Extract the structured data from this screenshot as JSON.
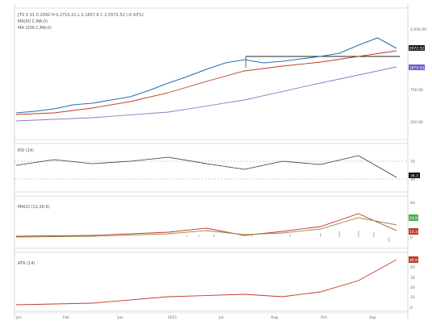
{
  "chart_data": [
    {
      "type": "line",
      "panel": "price",
      "header": {
        "symbol_line": "[TS X 01 0.2092 H 0.2715.21 L 2.1657.6 C 2.0572.52 (-0.93%)",
        "ma50": "MA(50 C,MA,0)",
        "ma200": "MA (200 C,MA,0)"
      },
      "y_ticks": [
        "1,050.00",
        "750.00",
        "250.00"
      ],
      "last_value_tag": "2072.52",
      "ma_value_tag": "1874.93",
      "series": [
        {
          "values": [
            {
              "x": 0,
              "y": 140
            },
            {
              "x": 0.05,
              "y": 138
            },
            {
              "x": 0.1,
              "y": 135
            },
            {
              "x": 0.15,
              "y": 130
            },
            {
              "x": 0.2,
              "y": 128
            },
            {
              "x": 0.25,
              "y": 124
            },
            {
              "x": 0.3,
              "y": 120
            },
            {
              "x": 0.35,
              "y": 112
            },
            {
              "x": 0.4,
              "y": 103
            },
            {
              "x": 0.45,
              "y": 95
            },
            {
              "x": 0.5,
              "y": 86
            },
            {
              "x": 0.55,
              "y": 78
            },
            {
              "x": 0.6,
              "y": 74
            },
            {
              "x": 0.65,
              "y": 78
            },
            {
              "x": 0.7,
              "y": 76
            },
            {
              "x": 0.75,
              "y": 73
            },
            {
              "x": 0.8,
              "y": 70
            },
            {
              "x": 0.85,
              "y": 66
            },
            {
              "x": 0.9,
              "y": 56
            },
            {
              "x": 0.95,
              "y": 47
            },
            {
              "x": 1,
              "y": 60
            }
          ]
        },
        {
          "values": [
            {
              "x": 0,
              "y": 142
            },
            {
              "x": 0.1,
              "y": 140
            },
            {
              "x": 0.2,
              "y": 134
            },
            {
              "x": 0.3,
              "y": 126
            },
            {
              "x": 0.4,
              "y": 115
            },
            {
              "x": 0.5,
              "y": 101
            },
            {
              "x": 0.6,
              "y": 88
            },
            {
              "x": 0.7,
              "y": 82
            },
            {
              "x": 0.8,
              "y": 77
            },
            {
              "x": 0.9,
              "y": 70
            },
            {
              "x": 1,
              "y": 63
            }
          ]
        },
        {
          "values": [
            {
              "x": 0,
              "y": 150
            },
            {
              "x": 0.2,
              "y": 146
            },
            {
              "x": 0.4,
              "y": 139
            },
            {
              "x": 0.6,
              "y": 124
            },
            {
              "x": 0.8,
              "y": 103
            },
            {
              "x": 1,
              "y": 83
            }
          ]
        }
      ]
    },
    {
      "type": "line",
      "panel": "rsi",
      "header": "RSI (14)",
      "y_ticks": [
        "70",
        "30"
      ],
      "last_value_tag": "36.3",
      "series": [
        {
          "values": [
            {
              "x": 0,
              "y": 205
            },
            {
              "x": 0.1,
              "y": 198
            },
            {
              "x": 0.2,
              "y": 203
            },
            {
              "x": 0.3,
              "y": 200
            },
            {
              "x": 0.4,
              "y": 195
            },
            {
              "x": 0.5,
              "y": 203
            },
            {
              "x": 0.6,
              "y": 210
            },
            {
              "x": 0.7,
              "y": 200
            },
            {
              "x": 0.8,
              "y": 204
            },
            {
              "x": 0.9,
              "y": 193
            },
            {
              "x": 1,
              "y": 220
            }
          ]
        }
      ]
    },
    {
      "type": "line",
      "panel": "macd",
      "header": "MACD (12,26,9)",
      "y_ticks": [
        "40",
        "20",
        "0"
      ],
      "last_value_tags": [
        "24.8",
        "10.3"
      ],
      "series": [
        {
          "values": [
            {
              "x": 0,
              "y": 293
            },
            {
              "x": 0.2,
              "y": 292
            },
            {
              "x": 0.4,
              "y": 288
            },
            {
              "x": 0.5,
              "y": 283
            },
            {
              "x": 0.6,
              "y": 292
            },
            {
              "x": 0.7,
              "y": 287
            },
            {
              "x": 0.8,
              "y": 281
            },
            {
              "x": 0.9,
              "y": 265
            },
            {
              "x": 1,
              "y": 286
            }
          ]
        },
        {
          "values": [
            {
              "x": 0,
              "y": 294
            },
            {
              "x": 0.2,
              "y": 293
            },
            {
              "x": 0.4,
              "y": 290
            },
            {
              "x": 0.5,
              "y": 286
            },
            {
              "x": 0.6,
              "y": 291
            },
            {
              "x": 0.7,
              "y": 289
            },
            {
              "x": 0.8,
              "y": 284
            },
            {
              "x": 0.9,
              "y": 270
            },
            {
              "x": 1,
              "y": 279
            }
          ]
        }
      ]
    },
    {
      "type": "line",
      "panel": "atr",
      "header": "ATR (14)",
      "y_ticks": [
        "40",
        "30",
        "20",
        "10",
        "0"
      ],
      "last_value_tag": "46.8",
      "series": [
        {
          "values": [
            {
              "x": 0,
              "y": 378
            },
            {
              "x": 0.2,
              "y": 376
            },
            {
              "x": 0.4,
              "y": 368
            },
            {
              "x": 0.6,
              "y": 365
            },
            {
              "x": 0.7,
              "y": 368
            },
            {
              "x": 0.8,
              "y": 362
            },
            {
              "x": 0.9,
              "y": 348
            },
            {
              "x": 1,
              "y": 322
            }
          ]
        }
      ]
    }
  ],
  "x_axis_labels": [
    "Jan",
    "Feb",
    "Jun",
    "2021",
    "Jul",
    "Aug",
    "Oct",
    "Sep"
  ]
}
